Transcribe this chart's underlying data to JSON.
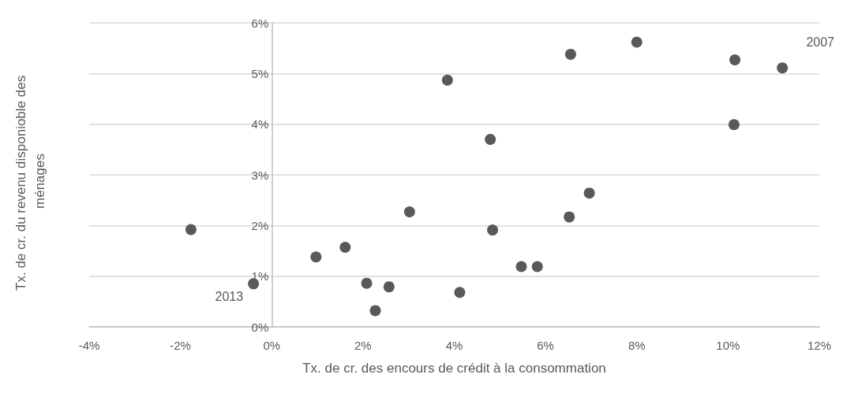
{
  "chart_data": {
    "type": "scatter",
    "xlabel": "Tx. de cr. des encours de crédit à la consommation",
    "ylabel": "Tx. de cr. du revenu disponioble des ménages",
    "x": [
      -1.77,
      -0.4,
      0.97,
      1.61,
      2.08,
      2.27,
      2.57,
      3.02,
      3.85,
      4.12,
      4.79,
      4.84,
      5.47,
      5.82,
      6.52,
      6.96,
      6.55,
      8.0,
      10.15,
      10.13,
      11.19
    ],
    "values": [
      1.92,
      0.85,
      1.38,
      1.57,
      0.86,
      0.32,
      0.79,
      2.27,
      4.87,
      0.68,
      3.7,
      1.91,
      1.19,
      1.19,
      2.17,
      2.64,
      5.38,
      5.62,
      5.27,
      3.99,
      5.11
    ],
    "color": "#595959",
    "marker": "circle",
    "xlim": [
      -4,
      12
    ],
    "xticks": [
      {
        "value": -4,
        "label": "-4%"
      },
      {
        "value": -2,
        "label": "-2%"
      },
      {
        "value": 0,
        "label": "0%"
      },
      {
        "value": 2,
        "label": "2%"
      },
      {
        "value": 4,
        "label": "4%"
      },
      {
        "value": 6,
        "label": "6%"
      },
      {
        "value": 8,
        "label": "8%"
      },
      {
        "value": 10,
        "label": "10%"
      },
      {
        "value": 12,
        "label": "12%"
      }
    ],
    "ylim": [
      0,
      6
    ],
    "yticks": [
      {
        "value": 0,
        "label": "0%"
      },
      {
        "value": 1,
        "label": "1%"
      },
      {
        "value": 2,
        "label": "2%"
      },
      {
        "value": 3,
        "label": "3%"
      },
      {
        "value": 4,
        "label": "4%"
      },
      {
        "value": 5,
        "label": "5%"
      },
      {
        "value": 6,
        "label": "6%"
      }
    ],
    "grid": "y",
    "annotations": [
      {
        "text": "2013",
        "x": -0.4,
        "y": 0.85
      },
      {
        "text": "2007",
        "x": 11.19,
        "y": 5.11
      }
    ]
  }
}
